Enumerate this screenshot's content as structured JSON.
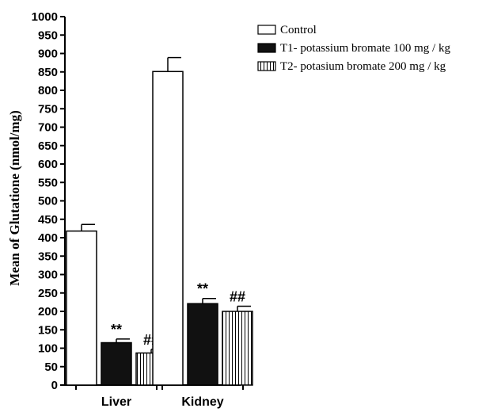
{
  "chart_data": {
    "type": "bar",
    "title": "",
    "xlabel": "",
    "ylabel": "Mean of Glutatione (nmol/mg)",
    "ylim": [
      0,
      1000
    ],
    "yticks": [
      0,
      50,
      100,
      150,
      200,
      250,
      300,
      350,
      400,
      450,
      500,
      550,
      600,
      650,
      700,
      750,
      800,
      850,
      900,
      950,
      1000
    ],
    "categories": [
      "Liver",
      "Kidney"
    ],
    "series": [
      {
        "name": "Control",
        "values": [
          418,
          851
        ],
        "errors": [
          18,
          38
        ],
        "fill": "white",
        "annotations": [
          "",
          ""
        ]
      },
      {
        "name": "T1- potassium bromate 100 mg / kg",
        "values": [
          115,
          221
        ],
        "errors": [
          10,
          14
        ],
        "fill": "solid",
        "annotations": [
          "**",
          "**"
        ]
      },
      {
        "name": "T2- potasium bromate 200 mg / kg",
        "values": [
          87,
          200
        ],
        "errors": [
          10,
          14
        ],
        "fill": "vertical-stripes",
        "annotations": [
          "##",
          "##"
        ]
      }
    ],
    "legend_position": "top-right",
    "grid": false
  }
}
